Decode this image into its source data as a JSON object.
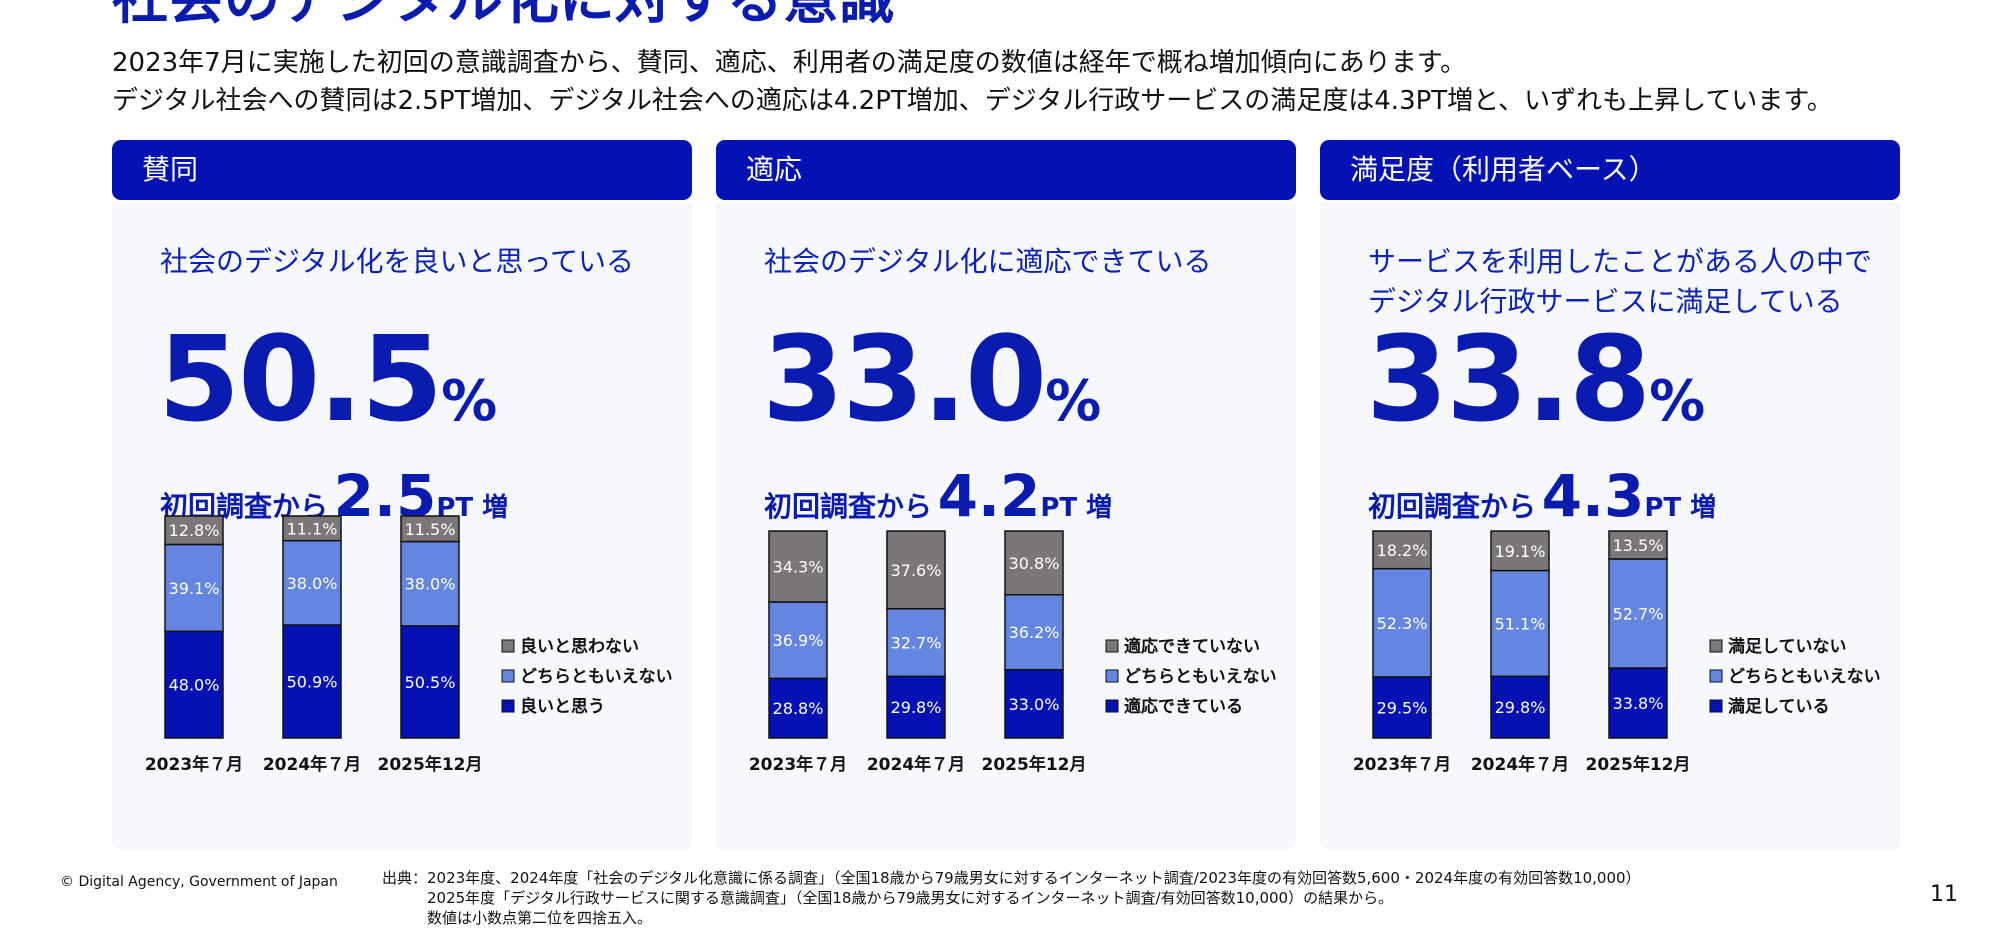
{
  "title": "社会のデジタル化に対する意識",
  "lead": [
    "2023年7月に実施した初回の意識調査から、賛同、適応、利用者の満足度の数値は経年で概ね増加傾向にあります。",
    "デジタル社会への賛同は2.5PT増加、デジタル社会への適応は4.2PT増加、デジタル行政サービスの満足度は4.3PT増と、いずれも上昇しています。"
  ],
  "panels": [
    {
      "header": "賛同",
      "desc": [
        "社会のデジタル化を良いと思っている",
        ""
      ],
      "value": "50.5",
      "unit": "%",
      "delta_prefix": "初回調査から",
      "delta_value": "2.5",
      "delta_suffix": "PT 増"
    },
    {
      "header": "適応",
      "desc": [
        "社会のデジタル化に適応できている",
        ""
      ],
      "value": "33.0",
      "unit": "%",
      "delta_prefix": "初回調査から",
      "delta_value": "4.2",
      "delta_suffix": "PT 増"
    },
    {
      "header": "満足度（利用者ベース）",
      "desc": [
        "サービスを利用したことがある人の中で",
        "デジタル行政サービスに満足している"
      ],
      "value": "33.8",
      "unit": "%",
      "delta_prefix": "初回調査から",
      "delta_value": "4.3",
      "delta_suffix": "PT 増"
    }
  ],
  "chart_data": [
    {
      "type": "bar",
      "stacked": true,
      "categories": [
        "2023年７月",
        "2024年７月",
        "2025年12月"
      ],
      "series": [
        {
          "name": "良いと思う",
          "values": [
            48.0,
            50.9,
            50.5
          ],
          "labels": [
            "48.0%",
            "50.9%",
            "50.5%"
          ],
          "color": "#0412b4"
        },
        {
          "name": "どちらともいえない",
          "values": [
            39.1,
            38.0,
            38.0
          ],
          "labels": [
            "39.1%",
            "38.0%",
            "38.0%"
          ],
          "color": "#6486e0"
        },
        {
          "name": "良いと思わない",
          "values": [
            12.8,
            11.1,
            11.5
          ],
          "labels": [
            "12.8%",
            "11.1%",
            "11.5%"
          ],
          "color": "#7b7778"
        }
      ],
      "legend": "right"
    },
    {
      "type": "bar",
      "stacked": true,
      "categories": [
        "2023年７月",
        "2024年７月",
        "2025年12月"
      ],
      "series": [
        {
          "name": "適応できている",
          "values": [
            28.8,
            29.8,
            33.0
          ],
          "labels": [
            "28.8%",
            "29.8%",
            "33.0%"
          ],
          "color": "#0412b4"
        },
        {
          "name": "どちらともいえない",
          "values": [
            36.9,
            32.7,
            36.2
          ],
          "labels": [
            "36.9%",
            "32.7%",
            "36.2%"
          ],
          "color": "#6486e0"
        },
        {
          "name": "適応できていない",
          "values": [
            34.3,
            37.6,
            30.8
          ],
          "labels": [
            "34.3%",
            "37.6%",
            "30.8%"
          ],
          "color": "#7b7778"
        }
      ],
      "legend": "right"
    },
    {
      "type": "bar",
      "stacked": true,
      "categories": [
        "2023年７月",
        "2024年７月",
        "2025年12月"
      ],
      "series": [
        {
          "name": "満足している",
          "values": [
            29.5,
            29.8,
            33.8
          ],
          "labels": [
            "29.5%",
            "29.8%",
            "33.8%"
          ],
          "color": "#0412b4"
        },
        {
          "name": "どちらともいえない",
          "values": [
            52.3,
            51.1,
            52.7
          ],
          "labels": [
            "52.3%",
            "51.1%",
            "52.7%"
          ],
          "color": "#6486e0"
        },
        {
          "name": "満足していない",
          "values": [
            18.2,
            19.1,
            13.5
          ],
          "labels": [
            "18.2%",
            "19.1%",
            "13.5%"
          ],
          "color": "#7b7778"
        }
      ],
      "legend": "right"
    }
  ],
  "footer": {
    "copyright": "© Digital Agency, Government of Japan",
    "source": [
      "出典：2023年度、2024年度「社会のデジタル化意識に係る調査」（全国18歳から79歳男女に対するインターネット調査/2023年度の有効回答数5,600・2024年度の有効回答数10,000）",
      "　　　2025年度「デジタル行政サービスに関する意識調査」（全国18歳から79歳男女に対するインターネット調査/有効回答数10,000）の結果から。",
      "　　　数値は小数点第二位を四捨五入。"
    ],
    "page": "11"
  }
}
